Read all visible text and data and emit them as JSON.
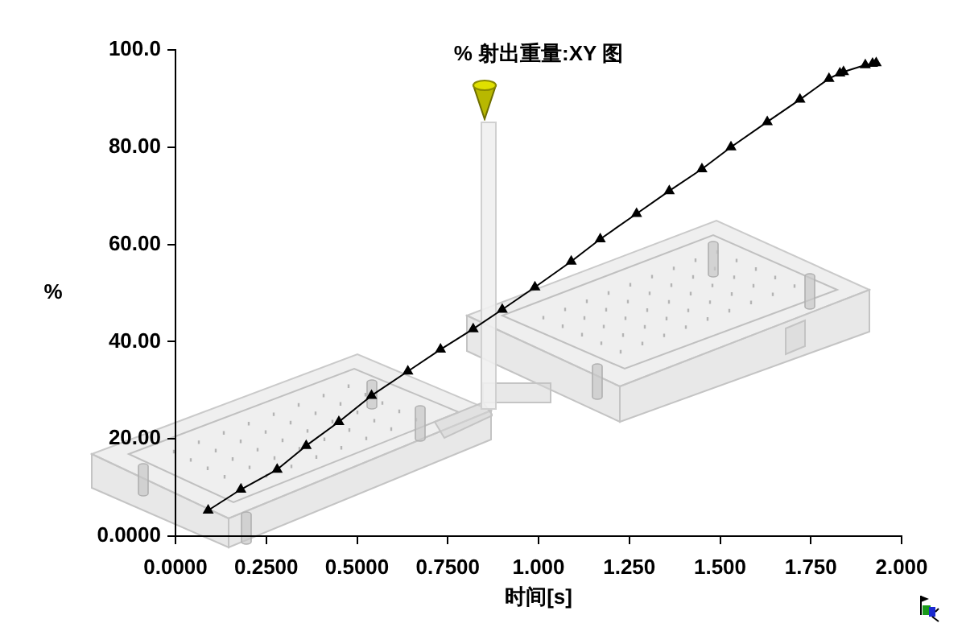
{
  "chart_data": {
    "type": "line",
    "title": "% 射出重量:XY 图",
    "xlabel": "时间[s]",
    "ylabel": "%",
    "series": [
      {
        "color": "#000000",
        "x": [
          0.09,
          0.18,
          0.28,
          0.36,
          0.45,
          0.54,
          0.64,
          0.73,
          0.82,
          0.9,
          0.99,
          1.09,
          1.17,
          1.27,
          1.36,
          1.45,
          1.53,
          1.63,
          1.72,
          1.8,
          1.83,
          1.84,
          1.9,
          1.92,
          1.93
        ],
        "values": [
          5.3,
          9.6,
          13.7,
          18.6,
          23.5,
          28.9,
          33.9,
          38.4,
          42.6,
          46.6,
          51.2,
          56.5,
          61.1,
          66.3,
          71.0,
          75.5,
          80.0,
          85.2,
          89.8,
          94.1,
          95.2,
          95.5,
          96.9,
          97.2,
          97.3
        ]
      }
    ],
    "xlim": [
      0,
      2
    ],
    "xticks": [
      {
        "value": 0,
        "label": "0.0000"
      },
      {
        "value": 0.25,
        "label": "0.2500"
      },
      {
        "value": 0.5,
        "label": "0.5000"
      },
      {
        "value": 0.75,
        "label": "0.7500"
      },
      {
        "value": 1,
        "label": "1.000"
      },
      {
        "value": 1.25,
        "label": "1.250"
      },
      {
        "value": 1.5,
        "label": "1.500"
      },
      {
        "value": 1.75,
        "label": "1.750"
      },
      {
        "value": 2,
        "label": "2.000"
      }
    ],
    "ylim": [
      0,
      100
    ],
    "yticks": [
      {
        "value": 0,
        "label": "0.0000"
      },
      {
        "value": 20,
        "label": "20.00"
      },
      {
        "value": 40,
        "label": "40.00"
      },
      {
        "value": 60,
        "label": "60.00"
      },
      {
        "value": 80,
        "label": "80.00"
      },
      {
        "value": 100,
        "label": "100.0"
      }
    ],
    "grid": false,
    "legend": false,
    "marker": "triangle",
    "line_style": "solid"
  }
}
